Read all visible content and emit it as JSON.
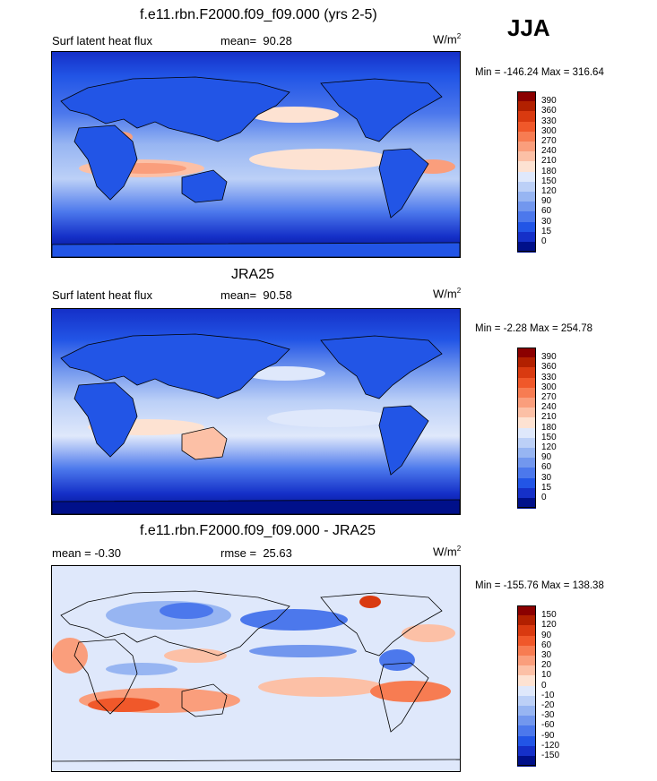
{
  "season": "JJA",
  "panels": [
    {
      "title": "f.e11.rbn.F2000.f09_f09.000 (yrs 2-5)",
      "left_label": "Surf latent heat flux",
      "stat_label": "mean=",
      "stat_value": "90.28",
      "units": "W/m",
      "units_exp": "2",
      "minmax": "Min = -146.24 Max = 316.64",
      "colorbar": {
        "levels": [
          "390",
          "360",
          "330",
          "300",
          "270",
          "240",
          "210",
          "180",
          "150",
          "120",
          "90",
          "60",
          "30",
          "15",
          "0"
        ],
        "colors": [
          "#8b0000",
          "#b22000",
          "#d93a10",
          "#f0582a",
          "#f77c52",
          "#fa9e7c",
          "#fcc0a6",
          "#fde2d2",
          "#dfe8fb",
          "#bcd0f7",
          "#97b5f2",
          "#7297ee",
          "#4c78ec",
          "#2255e6",
          "#1530c8",
          "#00108a"
        ]
      }
    },
    {
      "title": "JRA25",
      "left_label": "Surf latent heat flux",
      "stat_label": "mean=",
      "stat_value": "90.58",
      "units": "W/m",
      "units_exp": "2",
      "minmax": "Min =  -2.28 Max = 254.78",
      "colorbar": {
        "levels": [
          "390",
          "360",
          "330",
          "300",
          "270",
          "240",
          "210",
          "180",
          "150",
          "120",
          "90",
          "60",
          "30",
          "15",
          "0"
        ],
        "colors": [
          "#8b0000",
          "#b22000",
          "#d93a10",
          "#f0582a",
          "#f77c52",
          "#fa9e7c",
          "#fcc0a6",
          "#fde2d2",
          "#dfe8fb",
          "#bcd0f7",
          "#97b5f2",
          "#7297ee",
          "#4c78ec",
          "#2255e6",
          "#1530c8",
          "#00108a"
        ]
      }
    },
    {
      "title": "f.e11.rbn.F2000.f09_f09.000 - JRA25",
      "left_label": "mean =  -0.30",
      "stat_label": "rmse =",
      "stat_value": "25.63",
      "units": "W/m",
      "units_exp": "2",
      "minmax": "Min = -155.76 Max = 138.38",
      "colorbar": {
        "levels": [
          "150",
          "120",
          "90",
          "60",
          "30",
          "20",
          "10",
          "0",
          "-10",
          "-20",
          "-30",
          "-60",
          "-90",
          "-120",
          "-150"
        ],
        "colors": [
          "#8b0000",
          "#b22000",
          "#d93a10",
          "#f0582a",
          "#f77c52",
          "#fa9e7c",
          "#fcc0a6",
          "#fde2d2",
          "#dfe8fb",
          "#bcd0f7",
          "#97b5f2",
          "#7297ee",
          "#4c78ec",
          "#2255e6",
          "#1530c8",
          "#00108a"
        ]
      }
    }
  ]
}
